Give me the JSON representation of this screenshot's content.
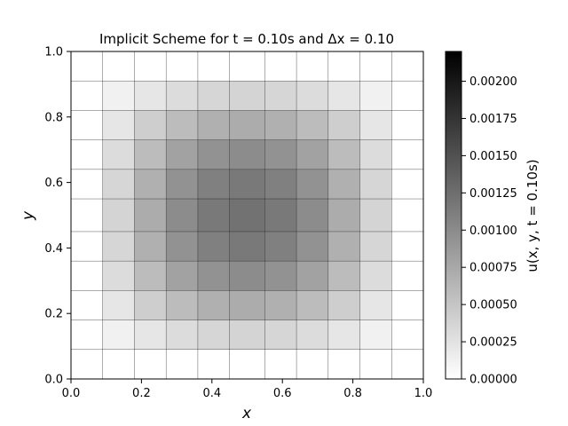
{
  "chart_data": {
    "type": "heatmap",
    "title": "Implicit Scheme for t = 0.10s and Δx = 0.10",
    "xlabel": "x",
    "ylabel": "y",
    "colorbar_label": "u(x, y, t = 0.10s)",
    "colormap": "gray_r",
    "xlim": [
      0,
      1
    ],
    "ylim": [
      0,
      1
    ],
    "x_ticks": [
      "0.0",
      "0.2",
      "0.4",
      "0.6",
      "0.8",
      "1.0"
    ],
    "y_ticks": [
      "0.0",
      "0.2",
      "0.4",
      "0.6",
      "0.8",
      "1.0"
    ],
    "vmin": 0,
    "vmax": 0.0022,
    "colorbar_ticks": [
      "0.00000",
      "0.00025",
      "0.00050",
      "0.00075",
      "0.00100",
      "0.00125",
      "0.00150",
      "0.00175",
      "0.00200"
    ],
    "grid": true,
    "x_edges": [
      0.0,
      0.09,
      0.18,
      0.27,
      0.36,
      0.45,
      0.55,
      0.64,
      0.73,
      0.82,
      0.91,
      1.0
    ],
    "y_edges": [
      0.0,
      0.09,
      0.18,
      0.27,
      0.36,
      0.45,
      0.55,
      0.64,
      0.73,
      0.82,
      0.91,
      1.0
    ],
    "values": [
      [
        0,
        0,
        0,
        0,
        0,
        0,
        0,
        0,
        0,
        0,
        0
      ],
      [
        0,
        0.00012,
        0.00022,
        0.0003,
        0.00035,
        0.00037,
        0.00035,
        0.0003,
        0.00022,
        0.00012,
        0
      ],
      [
        0,
        0.00022,
        0.00042,
        0.00058,
        0.00068,
        0.00072,
        0.00068,
        0.00058,
        0.00042,
        0.00022,
        0
      ],
      [
        0,
        0.0003,
        0.00058,
        0.0008,
        0.00094,
        0.00099,
        0.00094,
        0.0008,
        0.00058,
        0.0003,
        0
      ],
      [
        0,
        0.00035,
        0.00068,
        0.00094,
        0.0011,
        0.00116,
        0.0011,
        0.00094,
        0.00068,
        0.00035,
        0
      ],
      [
        0,
        0.00037,
        0.00072,
        0.00099,
        0.00116,
        0.00122,
        0.00116,
        0.00099,
        0.00072,
        0.00037,
        0
      ],
      [
        0,
        0.00035,
        0.00068,
        0.00094,
        0.0011,
        0.00116,
        0.0011,
        0.00094,
        0.00068,
        0.00035,
        0
      ],
      [
        0,
        0.0003,
        0.00058,
        0.0008,
        0.00094,
        0.00099,
        0.00094,
        0.0008,
        0.00058,
        0.0003,
        0
      ],
      [
        0,
        0.00022,
        0.00042,
        0.00058,
        0.00068,
        0.00072,
        0.00068,
        0.00058,
        0.00042,
        0.00022,
        0
      ],
      [
        0,
        0.00012,
        0.00022,
        0.0003,
        0.00035,
        0.00037,
        0.00035,
        0.0003,
        0.00022,
        0.00012,
        0
      ],
      [
        0,
        0,
        0,
        0,
        0,
        0,
        0,
        0,
        0,
        0,
        0
      ]
    ]
  }
}
